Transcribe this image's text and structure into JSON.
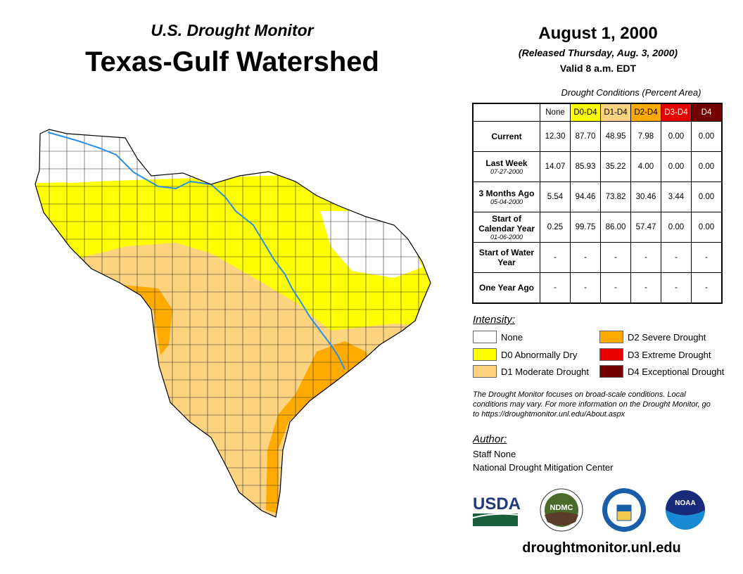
{
  "header": {
    "subtitle": "U.S. Drought Monitor",
    "title": "Texas-Gulf Watershed",
    "date": "August 1, 2000",
    "released": "(Released Thursday, Aug. 3, 2000)",
    "valid": "Valid 8 a.m. EDT"
  },
  "table": {
    "caption": "Drought Conditions (Percent Area)",
    "columns": [
      {
        "label": "None",
        "bg": "#ffffff",
        "fg": "#000000"
      },
      {
        "label": "D0-D4",
        "bg": "#ffff00",
        "fg": "#000000"
      },
      {
        "label": "D1-D4",
        "bg": "#fcd37f",
        "fg": "#000000"
      },
      {
        "label": "D2-D4",
        "bg": "#ffaa00",
        "fg": "#000000"
      },
      {
        "label": "D3-D4",
        "bg": "#e60000",
        "fg": "#ffffff"
      },
      {
        "label": "D4",
        "bg": "#730000",
        "fg": "#ffffff"
      }
    ],
    "rows": [
      {
        "label": "Current",
        "sub": "",
        "values": [
          "12.30",
          "87.70",
          "48.95",
          "7.98",
          "0.00",
          "0.00"
        ]
      },
      {
        "label": "Last Week",
        "sub": "07-27-2000",
        "values": [
          "14.07",
          "85.93",
          "35.22",
          "4.00",
          "0.00",
          "0.00"
        ]
      },
      {
        "label": "3 Months Ago",
        "sub": "05-04-2000",
        "values": [
          "5.54",
          "94.46",
          "73.82",
          "30.46",
          "3.44",
          "0.00"
        ]
      },
      {
        "label": "Start of Calendar Year",
        "sub": "01-06-2000",
        "values": [
          "0.25",
          "99.75",
          "86.00",
          "57.47",
          "0.00",
          "0.00"
        ]
      },
      {
        "label": "Start of Water Year",
        "sub": "",
        "values": [
          "-",
          "-",
          "-",
          "-",
          "-",
          "-"
        ]
      },
      {
        "label": "One Year Ago",
        "sub": "",
        "values": [
          "-",
          "-",
          "-",
          "-",
          "-",
          "-"
        ]
      }
    ]
  },
  "legend": {
    "title": "Intensity:",
    "items": [
      {
        "label": "None",
        "color": "#ffffff"
      },
      {
        "label": "D0 Abnormally Dry",
        "color": "#ffff00"
      },
      {
        "label": "D1 Moderate Drought",
        "color": "#fcd37f"
      },
      {
        "label": "D2 Severe Drought",
        "color": "#ffaa00"
      },
      {
        "label": "D3 Extreme Drought",
        "color": "#e60000"
      },
      {
        "label": "D4 Exceptional Drought",
        "color": "#730000"
      }
    ]
  },
  "note": "The Drought Monitor focuses on broad-scale conditions. Local conditions may vary. For more information on the Drought Monitor, go to https://droughtmonitor.unl.edu/About.aspx",
  "author": {
    "title": "Author:",
    "name": "Staff None",
    "org": "National Drought Mitigation Center"
  },
  "logos": {
    "usda": "USDA",
    "ndmc": "NDMC",
    "doc": "Department of Commerce",
    "noaa": "NOAA"
  },
  "url": "droughtmonitor.unl.edu"
}
